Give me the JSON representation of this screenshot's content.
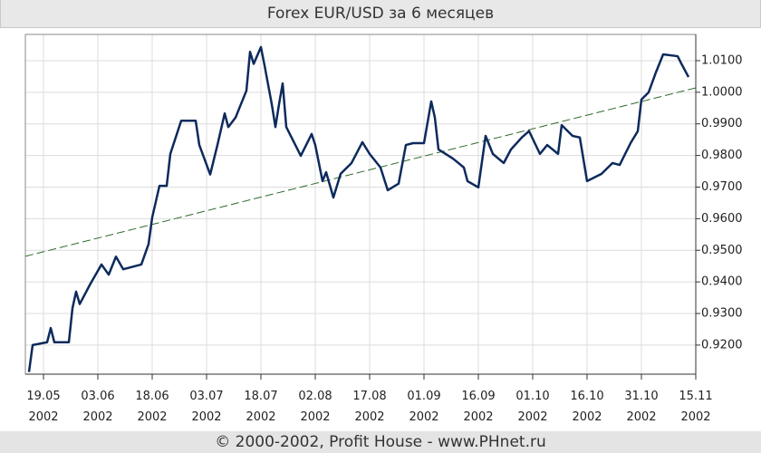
{
  "chart_data": {
    "type": "line",
    "title": "Forex EUR/USD за 6 месяцев",
    "footer": "© 2000-2002, Profit House - www.PHnet.ru",
    "grid": true,
    "xlim": [
      "2002-05-14",
      "2002-11-15"
    ],
    "xticks": [
      {
        "value": "2002-05-19",
        "label": "19.05\n2002"
      },
      {
        "value": "2002-06-03",
        "label": "03.06\n2002"
      },
      {
        "value": "2002-06-18",
        "label": "18.06\n2002"
      },
      {
        "value": "2002-07-03",
        "label": "03.07\n2002"
      },
      {
        "value": "2002-07-18",
        "label": "18.07\n2002"
      },
      {
        "value": "2002-08-02",
        "label": "02.08\n2002"
      },
      {
        "value": "2002-08-17",
        "label": "17.08\n2002"
      },
      {
        "value": "2002-09-01",
        "label": "01.09\n2002"
      },
      {
        "value": "2002-09-16",
        "label": "16.09\n2002"
      },
      {
        "value": "2002-10-01",
        "label": "01.10\n2002"
      },
      {
        "value": "2002-10-16",
        "label": "16.10\n2002"
      },
      {
        "value": "2002-10-31",
        "label": "31.10\n2002"
      },
      {
        "value": "2002-11-15",
        "label": "15.11\n2002"
      }
    ],
    "ylim": [
      0.9108,
      1.0183
    ],
    "yticks": [
      {
        "value": 0.92,
        "label": "0.9200"
      },
      {
        "value": 0.93,
        "label": "0.9300"
      },
      {
        "value": 0.94,
        "label": "0.9400"
      },
      {
        "value": 0.95,
        "label": "0.9500"
      },
      {
        "value": 0.96,
        "label": "0.9600"
      },
      {
        "value": 0.97,
        "label": "0.9700"
      },
      {
        "value": 0.98,
        "label": "0.9800"
      },
      {
        "value": 0.99,
        "label": "0.9900"
      },
      {
        "value": 1.0,
        "label": "1.0000"
      },
      {
        "value": 1.01,
        "label": "1.0100"
      }
    ],
    "series": [
      {
        "color": "#0d2a5c",
        "x": [
          "2002-05-15",
          "2002-05-16",
          "2002-05-20",
          "2002-05-21",
          "2002-05-22",
          "2002-05-26",
          "2002-05-27",
          "2002-05-28",
          "2002-05-29",
          "2002-06-01",
          "2002-06-04",
          "2002-06-06",
          "2002-06-08",
          "2002-06-10",
          "2002-06-15",
          "2002-06-17",
          "2002-06-18",
          "2002-06-20",
          "2002-06-22",
          "2002-06-23",
          "2002-06-26",
          "2002-06-30",
          "2002-07-01",
          "2002-07-04",
          "2002-07-06",
          "2002-07-08",
          "2002-07-09",
          "2002-07-11",
          "2002-07-14",
          "2002-07-15",
          "2002-07-16",
          "2002-07-18",
          "2002-07-19",
          "2002-07-21",
          "2002-07-22",
          "2002-07-23",
          "2002-07-24",
          "2002-07-25",
          "2002-07-29",
          "2002-08-01",
          "2002-08-02",
          "2002-08-04",
          "2002-08-05",
          "2002-08-07",
          "2002-08-09",
          "2002-08-12",
          "2002-08-15",
          "2002-08-17",
          "2002-08-20",
          "2002-08-22",
          "2002-08-25",
          "2002-08-27",
          "2002-08-29",
          "2002-09-01",
          "2002-09-03",
          "2002-09-04",
          "2002-09-05",
          "2002-09-09",
          "2002-09-12",
          "2002-09-13",
          "2002-09-16",
          "2002-09-18",
          "2002-09-20",
          "2002-09-23",
          "2002-09-25",
          "2002-09-28",
          "2002-09-30",
          "2002-10-03",
          "2002-10-05",
          "2002-10-08",
          "2002-10-09",
          "2002-10-12",
          "2002-10-14",
          "2002-10-16",
          "2002-10-20",
          "2002-10-23",
          "2002-10-25",
          "2002-10-28",
          "2002-10-30",
          "2002-10-31",
          "2002-11-02",
          "2002-11-04",
          "2002-11-06",
          "2002-11-10",
          "2002-11-11",
          "2002-11-13"
        ],
        "values": [
          0.9115,
          0.92,
          0.9209,
          0.9254,
          0.9209,
          0.9209,
          0.9317,
          0.9369,
          0.933,
          0.9395,
          0.9455,
          0.9423,
          0.948,
          0.944,
          0.9455,
          0.952,
          0.9604,
          0.9704,
          0.9704,
          0.9805,
          0.991,
          0.991,
          0.9833,
          0.974,
          0.9833,
          0.9933,
          0.989,
          0.992,
          1.0005,
          1.0128,
          1.009,
          1.0143,
          1.0085,
          0.9962,
          0.989,
          0.9962,
          1.0028,
          0.989,
          0.9799,
          0.9868,
          0.9833,
          0.9719,
          0.9747,
          0.9667,
          0.9742,
          0.9776,
          0.9842,
          0.9805,
          0.9762,
          0.969,
          0.9711,
          0.9833,
          0.9839,
          0.9839,
          0.9971,
          0.992,
          0.9819,
          0.979,
          0.9762,
          0.9719,
          0.9699,
          0.9862,
          0.9805,
          0.9776,
          0.9819,
          0.9857,
          0.9877,
          0.9805,
          0.9833,
          0.9805,
          0.9896,
          0.9862,
          0.9857,
          0.9719,
          0.9742,
          0.9776,
          0.977,
          0.9839,
          0.9877,
          0.9977,
          1.0,
          1.0063,
          1.012,
          1.0114,
          1.0091,
          1.0048
        ]
      }
    ],
    "trend_line": {
      "color": "#2e6b2e",
      "x": [
        "2002-05-14",
        "2002-11-15"
      ],
      "values": [
        0.9481,
        1.0014
      ]
    }
  }
}
